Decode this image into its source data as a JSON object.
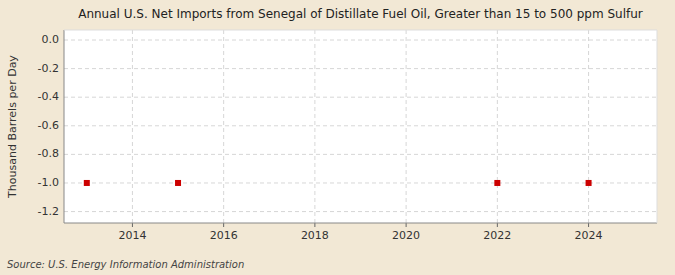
{
  "chart_data": {
    "type": "scatter",
    "title": "Annual U.S. Net Imports from Senegal of Distillate Fuel Oil, Greater than 15 to 500 ppm Sulfur",
    "ylabel": "Thousand Barrels per Day",
    "source": "Source: U.S. Energy Information Administration",
    "x": [
      2013,
      2015,
      2022,
      2024
    ],
    "values": [
      -1.0,
      -1.0,
      -1.0,
      -1.0
    ],
    "color": "#cc0000",
    "marker": "square",
    "xlim": [
      2012.5,
      2025.5
    ],
    "ylim": [
      -1.28,
      0.07
    ],
    "xticks": [
      2014,
      2016,
      2018,
      2020,
      2022,
      2024
    ],
    "yticks": [
      {
        "value": 0.0,
        "label": "0.0"
      },
      -0.2,
      -0.4,
      -0.6,
      -0.8,
      {
        "value": -1.0,
        "label": "-1.0"
      },
      -1.2
    ],
    "grid": true
  }
}
